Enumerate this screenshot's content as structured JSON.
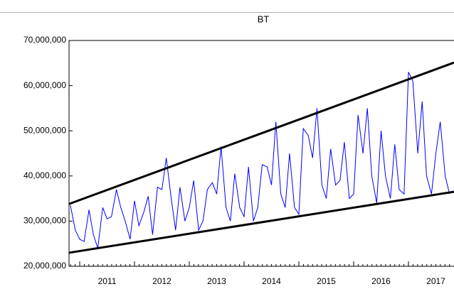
{
  "chart_data": {
    "type": "line",
    "title": "BT",
    "x": [
      2010.83,
      2010.92,
      2011.0,
      2011.08,
      2011.17,
      2011.25,
      2011.33,
      2011.42,
      2011.5,
      2011.58,
      2011.67,
      2011.75,
      2011.83,
      2011.92,
      2012.0,
      2012.08,
      2012.17,
      2012.25,
      2012.33,
      2012.42,
      2012.5,
      2012.58,
      2012.67,
      2012.75,
      2012.83,
      2012.92,
      2013.0,
      2013.08,
      2013.17,
      2013.25,
      2013.33,
      2013.42,
      2013.5,
      2013.58,
      2013.67,
      2013.75,
      2013.83,
      2013.92,
      2014.0,
      2014.08,
      2014.17,
      2014.25,
      2014.33,
      2014.42,
      2014.5,
      2014.58,
      2014.67,
      2014.75,
      2014.83,
      2014.92,
      2015.0,
      2015.08,
      2015.17,
      2015.25,
      2015.33,
      2015.42,
      2015.5,
      2015.58,
      2015.67,
      2015.75,
      2015.83,
      2015.92,
      2016.0,
      2016.08,
      2016.17,
      2016.25,
      2016.33,
      2016.42,
      2016.5,
      2016.58,
      2016.67,
      2016.75,
      2016.83,
      2016.92,
      2017.0,
      2017.08,
      2017.17,
      2017.25,
      2017.33,
      2017.42,
      2017.5,
      2017.58,
      2017.67,
      2017.75
    ],
    "series": [
      {
        "color": "#0000ff",
        "values": [
          33500000,
          28000000,
          26000000,
          25500000,
          32500000,
          27000000,
          24000000,
          33000000,
          30500000,
          31000000,
          37000000,
          33000000,
          30000000,
          26000000,
          34500000,
          29000000,
          32000000,
          35500000,
          27000000,
          37500000,
          37000000,
          44000000,
          35000000,
          28000000,
          37500000,
          30000000,
          33000000,
          39000000,
          28000000,
          30000000,
          37000000,
          38500000,
          36000000,
          46500000,
          33000000,
          30000000,
          40500000,
          33000000,
          31000000,
          42000000,
          30000000,
          33000000,
          42500000,
          42000000,
          38000000,
          52000000,
          36000000,
          33000000,
          45000000,
          33000000,
          31500000,
          50500000,
          49000000,
          44000000,
          55000000,
          38000000,
          35000000,
          46000000,
          38000000,
          39000000,
          47500000,
          35000000,
          36000000,
          53500000,
          45000000,
          55000000,
          40000000,
          34000000,
          50000000,
          40000000,
          35000000,
          47000000,
          37000000,
          36000000,
          63000000,
          61000000,
          45000000,
          56500000,
          40000000,
          36000000,
          45000000,
          52000000,
          40000000,
          36000000
        ]
      }
    ],
    "trend_lines": [
      {
        "color": "#000000",
        "x": [
          2010.805,
          2017.831
        ],
        "values": [
          33800000,
          65100000
        ]
      },
      {
        "color": "#000000",
        "x": [
          2010.805,
          2017.831
        ],
        "values": [
          23000000,
          36500000
        ]
      }
    ],
    "xlim": [
      2010.805,
      2017.831
    ],
    "xticks": [
      2011,
      2012,
      2013,
      2014,
      2015,
      2016,
      2017
    ],
    "ylim": [
      20000000,
      70000000
    ],
    "yticks": [
      {
        "value": 20000000,
        "label": "20,000,000"
      },
      {
        "value": 30000000,
        "label": "30,000,000"
      },
      {
        "value": 40000000,
        "label": "40,000,000"
      },
      {
        "value": 50000000,
        "label": "50,000,000"
      },
      {
        "value": 60000000,
        "label": "60,000,000"
      },
      {
        "value": 70000000,
        "label": "70,000,000"
      }
    ]
  }
}
